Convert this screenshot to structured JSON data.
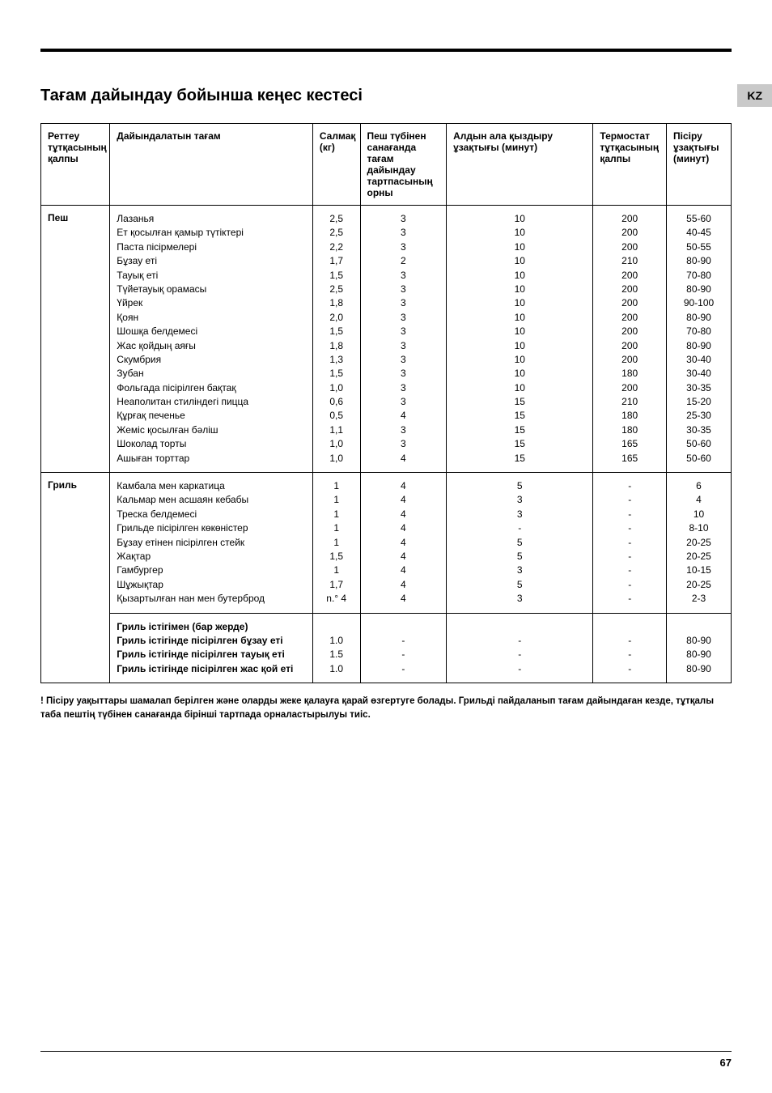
{
  "lang_badge": "KZ",
  "title": "Тағам дайындау бойынша кеңес кестесі",
  "columns": {
    "mode": "Реттеу тұтқасының қалпы",
    "food": "Дайындалатын тағам",
    "weight": "Салмақ (кг)",
    "rack": "Пеш түбінен санағанда тағам дайындау тартпасының орны",
    "preheat": "Алдын ала қыздыру ұзақтығы (минут)",
    "thermo": "Термостат тұтқасының қалпы",
    "time": "Пісіру ұзақтығы (минут)"
  },
  "rows": [
    {
      "mode": "Пеш",
      "food": [
        "Лазанья",
        "Ет қосылған қамыр түтіктері",
        "Паста пісірмелері",
        "Бұзау еті",
        "Тауық еті",
        "Түйетауық орамасы",
        "Үйрек",
        "Қоян",
        "Шошқа белдемесі",
        "Жас қойдың аяғы",
        "Скумбрия",
        "Зубан",
        "Фольгада пісірілген бақтақ",
        "Неаполитан стиліндегі пицца",
        "Құрғақ печенье",
        "Жеміс қосылған бәліш",
        "Шоколад торты",
        "Ашыған торттар"
      ],
      "weight": [
        "2,5",
        "2,5",
        "2,2",
        "1,7",
        "1,5",
        "2,5",
        "1,8",
        "2,0",
        "1,5",
        "1,8",
        "1,3",
        "1,5",
        "1,0",
        "0,6",
        "0,5",
        "1,1",
        "1,0",
        "1,0"
      ],
      "rack": [
        "3",
        "3",
        "3",
        "2",
        "3",
        "3",
        "3",
        "3",
        "3",
        "3",
        "3",
        "3",
        "3",
        "3",
        "4",
        "3",
        "3",
        "4"
      ],
      "preheat": [
        "10",
        "10",
        "10",
        "10",
        "10",
        "10",
        "10",
        "10",
        "10",
        "10",
        "10",
        "10",
        "10",
        "15",
        "15",
        "15",
        "15",
        "15"
      ],
      "thermo": [
        "200",
        "200",
        "200",
        "210",
        "200",
        "200",
        "200",
        "200",
        "200",
        "200",
        "200",
        "180",
        "200",
        "210",
        "180",
        "180",
        "165",
        "165"
      ],
      "time": [
        "55-60",
        "40-45",
        "50-55",
        "80-90",
        "70-80",
        "80-90",
        "90-100",
        "80-90",
        "70-80",
        "80-90",
        "30-40",
        "30-40",
        "30-35",
        "15-20",
        "25-30",
        "30-35",
        "50-60",
        "50-60"
      ]
    },
    {
      "mode": "Гриль",
      "food": [
        "Камбала мен каркатица",
        "Кальмар мен асшаян кебабы",
        "Треска белдемесі",
        "Грильде пісірілген көкөністер",
        "Бұзау етінен пісірілген стейк",
        "Жақтар",
        "Гамбургер",
        "Шұжықтар",
        "Қызартылған нан мен бутерброд"
      ],
      "weight": [
        "1",
        "1",
        "1",
        "1",
        "1",
        "1,5",
        "1",
        "1,7",
        "n.° 4"
      ],
      "rack": [
        "4",
        "4",
        "4",
        "4",
        "4",
        "4",
        "4",
        "4",
        "4"
      ],
      "preheat": [
        "5",
        "3",
        "3",
        "-",
        "5",
        "5",
        "3",
        "5",
        "3"
      ],
      "thermo": [
        "-",
        "-",
        "-",
        "-",
        "-",
        "-",
        "-",
        "-",
        "-"
      ],
      "time": [
        "6",
        "4",
        "10",
        "8-10",
        "20-25",
        "20-25",
        "10-15",
        "20-25",
        "2-3"
      ]
    },
    {
      "mode": "",
      "bold_food": true,
      "food": [
        "Гриль істігімен (бар жерде)",
        "Гриль істігінде пісірілген бұзау еті",
        "Гриль істігінде пісірілген тауық еті",
        "Гриль істігінде пісірілген жас қой еті"
      ],
      "weight": [
        "",
        "1.0",
        "1.5",
        "1.0"
      ],
      "rack": [
        "",
        "-",
        "-",
        "-"
      ],
      "preheat": [
        "",
        "-",
        "-",
        "-"
      ],
      "thermo": [
        "",
        "-",
        "-",
        "-"
      ],
      "time": [
        "",
        "80-90",
        "80-90",
        "80-90"
      ]
    }
  ],
  "footnote": "! Пісіру уақыттары шамалап берілген және оларды жеке қалауға қарай өзгертуге болады.  Грильді пайдаланып тағам дайындаған кезде, тұтқалы таба пештің түбінен санағанда бірінші тартпада орналастырылуы тиіс.",
  "page_number": "67"
}
